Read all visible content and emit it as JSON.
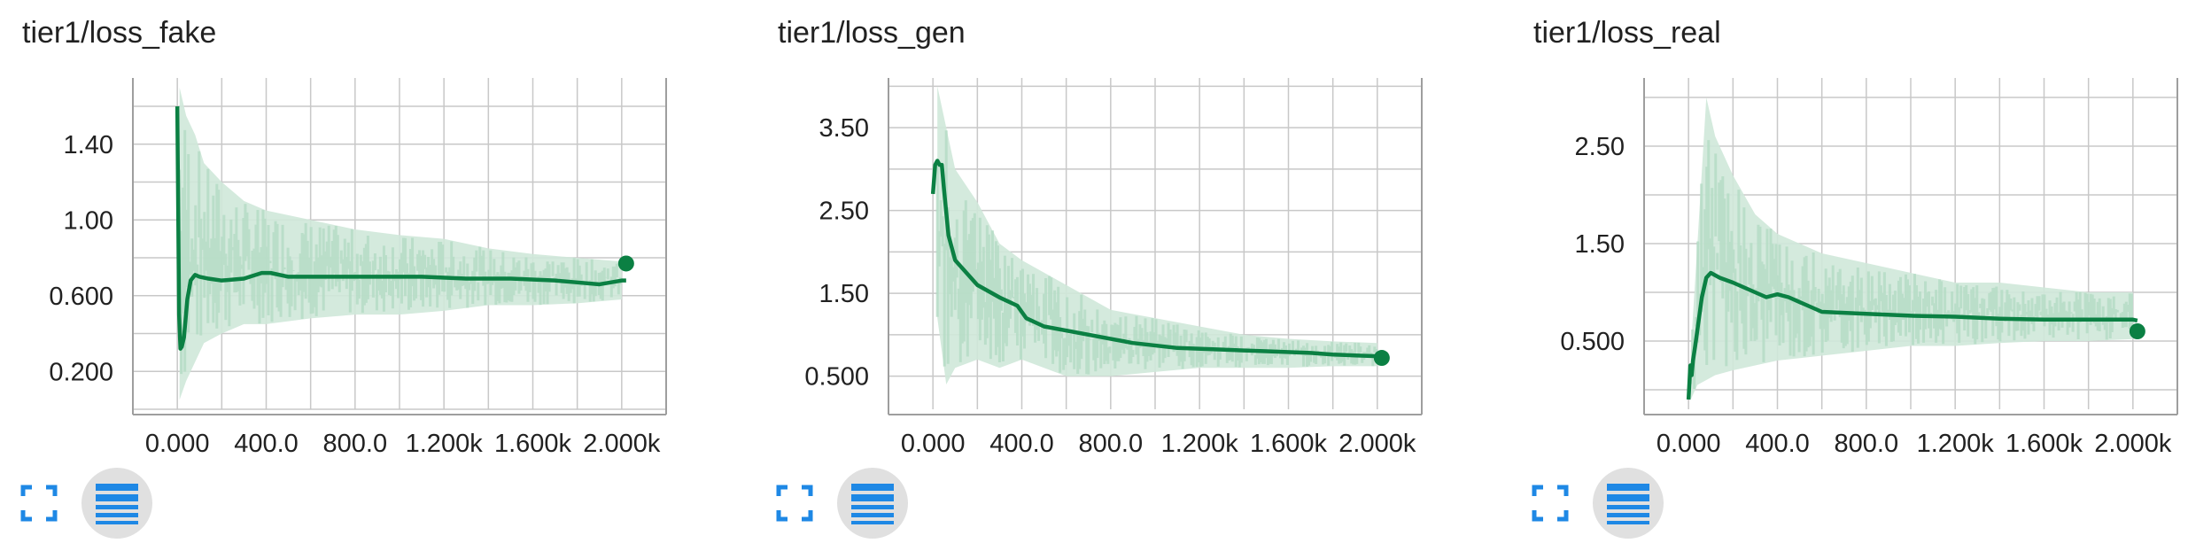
{
  "colors": {
    "line": "#0b8043",
    "raw": "#cfe8d9",
    "grid": "#c8c8c8",
    "axis": "#9e9e9e",
    "icon": "#1e88e5"
  },
  "chart_data": [
    {
      "type": "line",
      "title": "tier1/loss_fake",
      "xlim": [
        -200,
        2200
      ],
      "ylim": [
        0,
        1.75
      ],
      "x_ticks": [
        0,
        400,
        800,
        1200,
        1600,
        2000
      ],
      "x_tick_labels": [
        "0.000",
        "400.0",
        "800.0",
        "1.200k",
        "1.600k",
        "2.000k"
      ],
      "y_ticks": [
        0.2,
        0.6,
        1.0,
        1.4
      ],
      "y_tick_labels": [
        "0.200",
        "0.600",
        "1.00",
        "1.40"
      ],
      "smoothed": {
        "x": [
          0,
          8,
          14,
          20,
          30,
          45,
          60,
          80,
          100,
          140,
          200,
          300,
          380,
          420,
          500,
          700,
          900,
          1100,
          1300,
          1500,
          1700,
          1800,
          1900,
          1950,
          2000,
          2020
        ],
        "y": [
          1.6,
          0.5,
          0.32,
          0.33,
          0.38,
          0.58,
          0.68,
          0.71,
          0.7,
          0.69,
          0.68,
          0.69,
          0.72,
          0.72,
          0.7,
          0.7,
          0.7,
          0.7,
          0.69,
          0.69,
          0.68,
          0.67,
          0.66,
          0.67,
          0.68,
          0.68
        ]
      },
      "raw_band": {
        "x": [
          10,
          40,
          80,
          120,
          200,
          300,
          400,
          600,
          800,
          1000,
          1200,
          1400,
          1600,
          1800,
          2000
        ],
        "low": [
          0.05,
          0.15,
          0.25,
          0.35,
          0.4,
          0.45,
          0.45,
          0.48,
          0.5,
          0.5,
          0.52,
          0.55,
          0.55,
          0.56,
          0.58
        ],
        "high": [
          1.7,
          1.55,
          1.45,
          1.3,
          1.2,
          1.1,
          1.05,
          1.0,
          0.95,
          0.92,
          0.9,
          0.85,
          0.82,
          0.8,
          0.78
        ]
      },
      "last_point": {
        "x": 2020,
        "y": 0.77
      }
    },
    {
      "type": "line",
      "title": "tier1/loss_gen",
      "xlim": [
        -200,
        2200
      ],
      "ylim": [
        0.1,
        4.1
      ],
      "x_ticks": [
        0,
        400,
        800,
        1200,
        1600,
        2000
      ],
      "x_tick_labels": [
        "0.000",
        "400.0",
        "800.0",
        "1.200k",
        "1.600k",
        "2.000k"
      ],
      "y_ticks": [
        0.5,
        1.5,
        2.5,
        3.5
      ],
      "y_tick_labels": [
        "0.500",
        "1.50",
        "2.50",
        "3.50"
      ],
      "smoothed": {
        "x": [
          0,
          10,
          20,
          30,
          40,
          50,
          70,
          100,
          150,
          200,
          300,
          380,
          420,
          500,
          700,
          900,
          1100,
          1300,
          1500,
          1700,
          1800,
          1900,
          2000,
          2020
        ],
        "y": [
          2.7,
          3.05,
          3.1,
          3.05,
          3.05,
          2.75,
          2.2,
          1.9,
          1.75,
          1.6,
          1.45,
          1.35,
          1.2,
          1.1,
          1.0,
          0.9,
          0.84,
          0.82,
          0.8,
          0.78,
          0.76,
          0.75,
          0.74,
          0.73
        ]
      },
      "raw_band": {
        "x": [
          20,
          60,
          100,
          200,
          300,
          400,
          600,
          800,
          1000,
          1200,
          1400,
          1600,
          1800,
          2000
        ],
        "low": [
          1.2,
          0.4,
          0.6,
          0.7,
          0.6,
          0.7,
          0.5,
          0.5,
          0.55,
          0.6,
          0.6,
          0.6,
          0.62,
          0.62
        ],
        "high": [
          4.0,
          3.5,
          3.0,
          2.6,
          2.1,
          1.9,
          1.6,
          1.3,
          1.2,
          1.1,
          1.0,
          0.95,
          0.92,
          0.9
        ]
      },
      "last_point": {
        "x": 2020,
        "y": 0.72
      }
    },
    {
      "type": "line",
      "title": "tier1/loss_real",
      "xlim": [
        -200,
        2200
      ],
      "ylim": [
        -0.2,
        3.2
      ],
      "x_ticks": [
        0,
        400,
        800,
        1200,
        1600,
        2000
      ],
      "x_tick_labels": [
        "0.000",
        "400.0",
        "800.0",
        "1.200k",
        "1.600k",
        "2.000k"
      ],
      "y_ticks": [
        0.5,
        1.5,
        2.5
      ],
      "y_tick_labels": [
        "0.500",
        "1.50",
        "2.50"
      ],
      "smoothed": {
        "x": [
          0,
          8,
          14,
          20,
          30,
          45,
          60,
          80,
          100,
          140,
          200,
          300,
          350,
          400,
          450,
          550,
          600,
          800,
          1000,
          1200,
          1400,
          1600,
          1800,
          2000,
          2020
        ],
        "y": [
          -0.1,
          0.25,
          0.15,
          0.3,
          0.45,
          0.7,
          0.95,
          1.15,
          1.2,
          1.15,
          1.1,
          1.0,
          0.95,
          0.98,
          0.95,
          0.85,
          0.8,
          0.78,
          0.76,
          0.75,
          0.73,
          0.72,
          0.72,
          0.72,
          0.71
        ]
      },
      "raw_band": {
        "x": [
          10,
          40,
          80,
          120,
          200,
          300,
          400,
          600,
          800,
          1000,
          1200,
          1400,
          1600,
          1800,
          2000
        ],
        "low": [
          -0.1,
          0.05,
          0.1,
          0.15,
          0.2,
          0.25,
          0.3,
          0.35,
          0.4,
          0.45,
          0.45,
          0.48,
          0.5,
          0.5,
          0.52
        ],
        "high": [
          0.4,
          1.5,
          3.0,
          2.6,
          2.2,
          1.8,
          1.6,
          1.4,
          1.3,
          1.2,
          1.1,
          1.1,
          1.05,
          1.0,
          1.0
        ]
      },
      "last_point": {
        "x": 2020,
        "y": 0.6
      }
    }
  ],
  "icons": {
    "expand": "fullscreen-icon",
    "data": "data-table-icon"
  }
}
